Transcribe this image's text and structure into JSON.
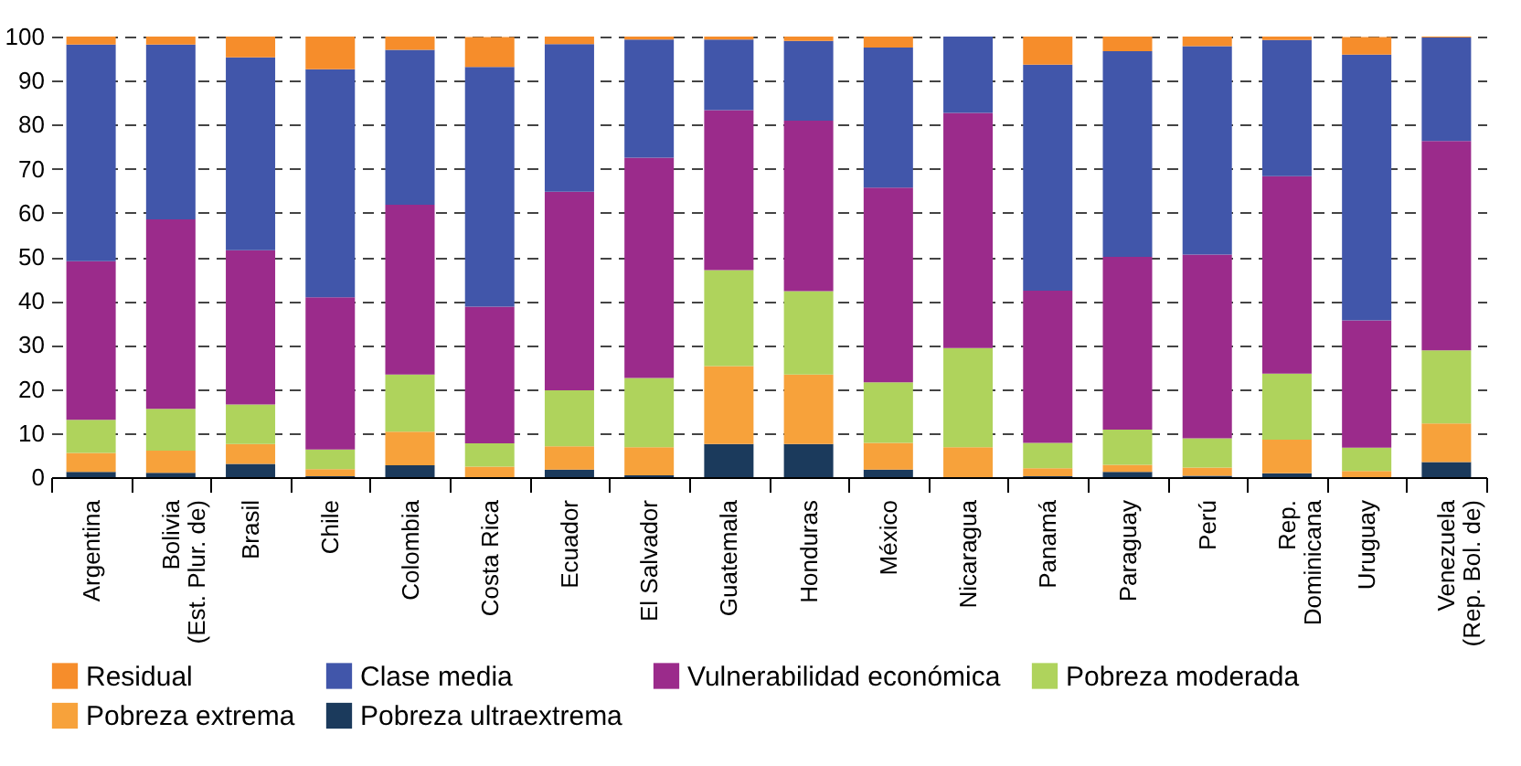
{
  "chart_data": {
    "type": "bar",
    "stacked": true,
    "categories": [
      "Argentina",
      "Bolivia\n(Est. Plur. de)",
      "Brasil",
      "Chile",
      "Colombia",
      "Costa Rica",
      "Ecuador",
      "El Salvador",
      "Guatemala",
      "Honduras",
      "México",
      "Nicaragua",
      "Panamá",
      "Paraguay",
      "Perú",
      "Rep.\nDominicana",
      "Uruguay",
      "Venezuela\n(Rep. Bol. de)"
    ],
    "series": [
      {
        "name": "Pobreza ultraextrema",
        "color": "#1b3a5c",
        "values": [
          1.2,
          1,
          3,
          0.2,
          2.7,
          null,
          1.7,
          0.4,
          7.5,
          7.5,
          1.7,
          0,
          0.2,
          1.2,
          0.3,
          0.9,
          null,
          3.4
        ]
      },
      {
        "name": "Pobreza extrema",
        "color": "#f7a23b",
        "values": [
          4.3,
          5,
          4.5,
          1.6,
          7.6,
          2.4,
          5.3,
          6.4,
          17.7,
          15.8,
          6.1,
          6.8,
          1.8,
          1.6,
          1.9,
          7.6,
          1.4,
          8.8
        ]
      },
      {
        "name": "Pobreza moderada",
        "color": "#afd35c",
        "values": [
          7.5,
          9.5,
          9,
          4.5,
          13,
          5.3,
          12.7,
          15.7,
          21.8,
          18.9,
          13.7,
          22.5,
          5.8,
          8,
          6.6,
          15,
          5.3,
          16.6
        ]
      },
      {
        "name": "Vulnerabilidad económica",
        "color": "#9b2b8b",
        "values": [
          36,
          43,
          35,
          34.5,
          38.5,
          31,
          45.1,
          50,
          36.3,
          38.7,
          44.2,
          53.4,
          34.5,
          39.2,
          41.7,
          44.8,
          28.9,
          47.5
        ]
      },
      {
        "name": "Clase media",
        "color": "#4156aa",
        "values": [
          49.2,
          39.7,
          43.8,
          51.8,
          35.2,
          54.4,
          33.5,
          26.8,
          16,
          18.1,
          31.8,
          17.3,
          51.3,
          46.7,
          47.3,
          30.9,
          60.3,
          23.5
        ]
      },
      {
        "name": "Residual",
        "color": "#f68d2b",
        "values": [
          1.8,
          1.8,
          4.7,
          7.4,
          3,
          6.8,
          1.7,
          0.7,
          0.7,
          1,
          2.5,
          0,
          6.4,
          3.3,
          2.2,
          0.8,
          4,
          0.2
        ]
      }
    ],
    "ylim": [
      0,
      100
    ],
    "yticks": [
      0,
      10,
      20,
      30,
      40,
      50,
      60,
      70,
      80,
      90,
      100
    ],
    "grid": "y",
    "legend": "bottom"
  }
}
